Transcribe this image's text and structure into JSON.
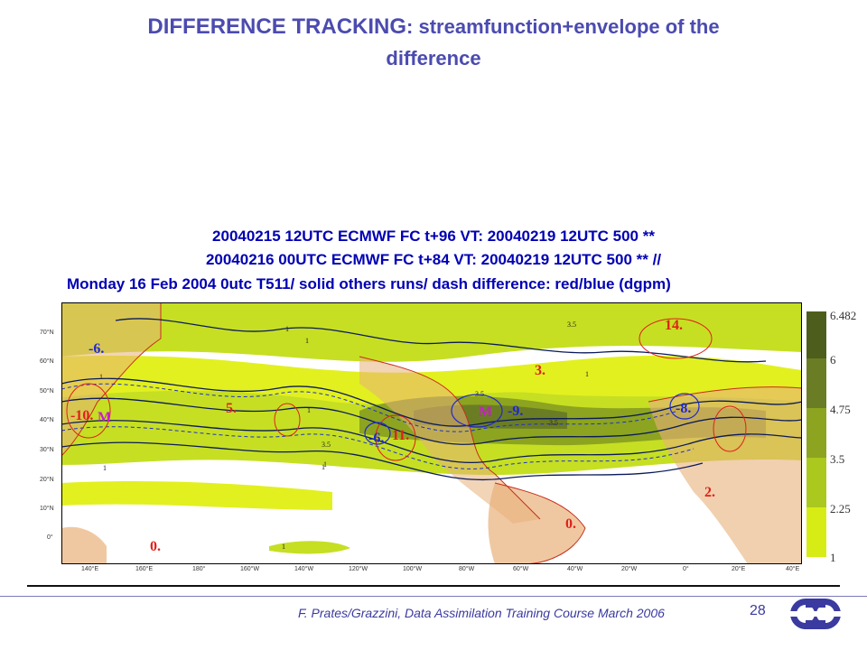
{
  "slide": {
    "title_bold": "DIFFERENCE TRACKING",
    "title_rest": ": streamfunction+envelope of the",
    "title_line2": "difference",
    "footer": "F. Prates/Grazzini,  Data Assimilation Training Course March 2006",
    "page_number": "28"
  },
  "figure": {
    "header_line1": "20040215 12UTC ECMWF  FC t+96 VT:   20040219 12UTC 500 **",
    "header_line2": "20040216 00UTC ECMWF  FC t+84 VT:   20040219 12UTC 500 ** //",
    "header_line3": "Monday 16 Feb 2004 0utc T511/ solid     others runs/ dash     difference: red/blue (dgpm)",
    "lat_labels": [
      "70°N",
      "60°N",
      "50°N",
      "40°N",
      "30°N",
      "20°N",
      "10°N",
      "0°"
    ],
    "lon_labels": [
      "140°E",
      "160°E",
      "180°",
      "160°W",
      "140°W",
      "120°W",
      "100°W",
      "80°W",
      "60°W",
      "40°W",
      "20°W",
      "0°",
      "20°E",
      "40°E"
    ],
    "colorbar_labels": [
      "6.482",
      "6",
      "4.75",
      "3.5",
      "2.25",
      "1"
    ],
    "colorbar_colors": [
      "#4d5e1c",
      "#6b7d24",
      "#8ca41f",
      "#aac81e",
      "#d7ec14"
    ],
    "map_labels": {
      "red": [
        "14.",
        "3.",
        "5.",
        "-10.",
        "11.",
        "2.",
        "0.",
        "0."
      ],
      "blue": [
        "-6.",
        "-6.",
        "-9.",
        "-8."
      ],
      "magenta": [
        "M",
        "M"
      ],
      "contour_values": [
        "3.5",
        "1",
        "1",
        "1",
        "1",
        "1",
        "3.5",
        "3.5",
        "3.5",
        "1",
        "1",
        "1",
        "1"
      ]
    }
  }
}
